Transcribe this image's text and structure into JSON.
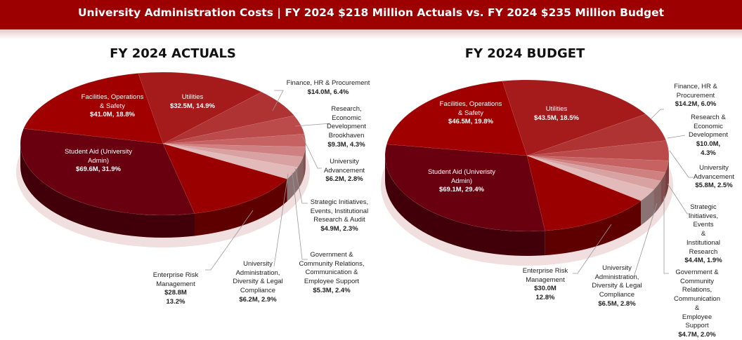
{
  "header": {
    "title": "University Administration Costs | FY 2024 $218 Million Actuals vs. FY 2024 $235 Million Budget"
  },
  "colors": {
    "title_bar": "#9c0000",
    "slices": [
      "#a51a1a",
      "#b03333",
      "#bb4a4a",
      "#c66262",
      "#cf8080",
      "#d9a2a2",
      "#e2baba",
      "#9a0000",
      "#690010",
      "#a00000"
    ]
  },
  "chart_data": [
    {
      "type": "pie",
      "style": "3d",
      "title": "FY 2024 ACTUALS",
      "categories": [
        "Utilities",
        "Finance, HR & Procurement",
        "Research, Economic Development Brookhaven",
        "University Advancement",
        "Strategic Initiatives, Events, Institutional Research & Audit",
        "Government & Community Relations, Communication & Employee Support",
        "University Administration, Diversity & Legal Compliance",
        "Enterprise Risk Management",
        "Student Aid (University Admin)",
        "Facilities, Operations & Safety"
      ],
      "values": [
        32.5,
        14.0,
        9.3,
        6.2,
        4.9,
        5.3,
        6.2,
        28.8,
        69.6,
        41.0
      ],
      "percents": [
        14.9,
        6.4,
        4.3,
        2.8,
        2.3,
        2.4,
        2.9,
        13.2,
        31.9,
        18.8
      ],
      "labels": [
        {
          "name": "Utilities",
          "value": "$32.5M, 14.9%"
        },
        {
          "name": "Finance, HR & Procurement",
          "value": "$14.0M, 6.4%"
        },
        {
          "name": "Research,\nEconomic\nDevelopment\nBrookhaven",
          "value": "$9.3M, 4.3%"
        },
        {
          "name": "University\nAdvancement",
          "value": "$6.2M, 2.8%"
        },
        {
          "name": "Strategic Initiatives,\nEvents, Institutional\nResearch & Audit",
          "value": "$4.9M, 2.3%"
        },
        {
          "name": "Government &\nCommunity Relations,\nCommunication &\nEmployee Support",
          "value": "$5.3M, 2.4%"
        },
        {
          "name": "University\nAdministration,\nDiversity & Legal\nCompliance",
          "value": "$6.2M, 2.9%"
        },
        {
          "name": "Enterprise Risk\nManagement",
          "value": "$28.8M\n13.2%"
        },
        {
          "name": "Student Aid (University\nAdmin)",
          "value": "$69.6M, 31.9%"
        },
        {
          "name": "Facilities, Operations\n& Safety",
          "value": "$41.0M, 18.8%"
        }
      ]
    },
    {
      "type": "pie",
      "style": "3d",
      "title": "FY 2024 BUDGET",
      "categories": [
        "Utilities",
        "Finance, HR & Procurement",
        "Research & Economic Development",
        "University Advancement",
        "Strategic Initiatives, Events & Institutional Research",
        "Government & Community Relations, Communication & Employee Support",
        "University Administration, Diversity & Legal Compliance",
        "Enterprise Risk Management",
        "Student Aid (Univeristy Admin)",
        "Facilities, Operations & Safety"
      ],
      "values": [
        43.5,
        14.2,
        10.0,
        5.8,
        4.4,
        4.7,
        6.5,
        30.0,
        69.1,
        46.5
      ],
      "percents": [
        18.5,
        6.0,
        4.3,
        2.5,
        1.9,
        2.0,
        2.8,
        12.8,
        29.4,
        19.8
      ],
      "labels": [
        {
          "name": "Utilities",
          "value": "$43.5M, 18.5%"
        },
        {
          "name": "Finance, HR &\nProcurement",
          "value": "$14.2M, 6.0%"
        },
        {
          "name": "Research &\nEconomic\nDevelopment",
          "value": "$10.0M, 4.3%"
        },
        {
          "name": "University\nAdvancement",
          "value": "$5.8M, 2.5%"
        },
        {
          "name": "Strategic\nInitiatives,\nEvents\n& Institutional\nResearch",
          "value": "$4.4M, 1.9%"
        },
        {
          "name": "Government &\nCommunity Relations,\nCommunication &\nEmployee Support",
          "value": "$4.7M, 2.0%"
        },
        {
          "name": "University\nAdministration,\nDiversity & Legal\nCompliance",
          "value": "$6.5M, 2.8%"
        },
        {
          "name": "Enterprise Risk\nManagement",
          "value": "$30.0M\n12.8%"
        },
        {
          "name": "Student Aid (Univeristy\nAdmin)",
          "value": "$69.1M, 29.4%"
        },
        {
          "name": "Facilities, Operations\n& Safety",
          "value": "$46.5M, 19.8%"
        }
      ]
    }
  ]
}
